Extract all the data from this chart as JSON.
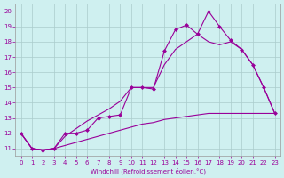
{
  "xlabel": "Windchill (Refroidissement éolien,°C)",
  "background_color": "#cff0f0",
  "grid_color": "#aacccc",
  "line_color": "#990099",
  "x": [
    0,
    1,
    2,
    3,
    4,
    5,
    6,
    7,
    8,
    9,
    10,
    11,
    12,
    13,
    14,
    15,
    16,
    17,
    18,
    19,
    20,
    21,
    22,
    23
  ],
  "jagged": [
    12,
    11,
    10.9,
    11,
    12,
    12,
    12.2,
    13,
    13.1,
    13.2,
    15,
    15,
    14.9,
    17.4,
    18.8,
    19.1,
    18.5,
    20,
    19,
    18.1,
    17.5,
    16.5,
    15,
    13.3
  ],
  "upper": [
    12,
    11,
    10.9,
    11,
    11.8,
    12.3,
    12.8,
    13.2,
    13.6,
    14.1,
    15,
    15,
    15,
    16.5,
    17.5,
    18,
    18.5,
    18,
    17.8,
    18,
    17.5,
    16.5,
    15,
    13.3
  ],
  "lower": [
    12,
    11,
    10.9,
    11,
    11.2,
    11.4,
    11.6,
    11.8,
    12.0,
    12.2,
    12.4,
    12.6,
    12.7,
    12.9,
    13.0,
    13.1,
    13.2,
    13.3,
    13.3,
    13.3,
    13.3,
    13.3,
    13.3,
    13.3
  ],
  "ylim": [
    10.5,
    20.5
  ],
  "xlim": [
    -0.5,
    23.5
  ],
  "yticks": [
    11,
    12,
    13,
    14,
    15,
    16,
    17,
    18,
    19,
    20
  ],
  "xticks": [
    0,
    1,
    2,
    3,
    4,
    5,
    6,
    7,
    8,
    9,
    10,
    11,
    12,
    13,
    14,
    15,
    16,
    17,
    18,
    19,
    20,
    21,
    22,
    23
  ]
}
